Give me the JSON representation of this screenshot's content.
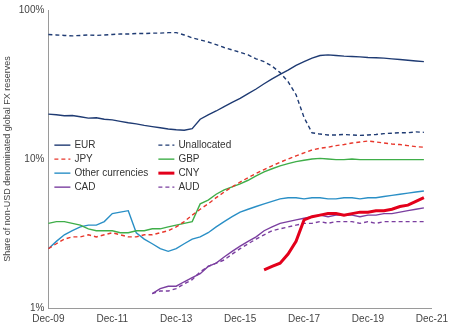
{
  "chart_data": {
    "type": "line",
    "ylabel": "Share of non-USD denominated global FX reserves",
    "categories": [
      "Dec-09",
      null,
      null,
      null,
      null,
      null,
      null,
      null,
      "Dec-11",
      null,
      null,
      null,
      null,
      null,
      null,
      null,
      "Dec-13",
      null,
      null,
      null,
      null,
      null,
      null,
      null,
      "Dec-15",
      null,
      null,
      null,
      null,
      null,
      null,
      null,
      "Dec-17",
      null,
      null,
      null,
      null,
      null,
      null,
      null,
      "Dec-19",
      null,
      null,
      null,
      null,
      null,
      null,
      null,
      "Dec-21"
    ],
    "series": [
      {
        "name": "EUR",
        "color": "#1f3b73",
        "line_style": "solid",
        "values": [
          20,
          19.8,
          19.5,
          19.6,
          19.2,
          18.8,
          18.9,
          18.5,
          18.3,
          17.9,
          17.5,
          17.2,
          16.8,
          16.5,
          16.2,
          15.9,
          15.7,
          15.6,
          16.0,
          18.5,
          19.8,
          21.0,
          22.5,
          24.0,
          25.5,
          27.5,
          29.5,
          32.0,
          34.5,
          37.0,
          39.5,
          42.5,
          45.0,
          47.5,
          49.5,
          50.0,
          49.5,
          49.0,
          48.8,
          48.5,
          48.0,
          47.8,
          47.5,
          47.0,
          46.5,
          46.0,
          45.5,
          45.0,
          null
        ]
      },
      {
        "name": "Unallocated",
        "color": "#1f3b73",
        "line_style": "dashed",
        "values": [
          68.5,
          68,
          67.5,
          67,
          67.5,
          68,
          67.5,
          68,
          68.5,
          69,
          69,
          69.5,
          69.5,
          70,
          70,
          70.5,
          70.5,
          68,
          65,
          63,
          61,
          58.5,
          56,
          54,
          52,
          50,
          47,
          45,
          42,
          38,
          33,
          27,
          19,
          15,
          14.7,
          14.5,
          14.5,
          14.6,
          14.5,
          14.4,
          14.5,
          14.6,
          14.8,
          14.9,
          15.0,
          15.0,
          15.2,
          15.1,
          null
        ]
      },
      {
        "name": "JPY",
        "color": "#e8372c",
        "line_style": "dashed",
        "values": [
          2.5,
          2.7,
          2.9,
          3.0,
          3.0,
          3.1,
          3.0,
          3.1,
          3.2,
          3.1,
          3.0,
          3.0,
          3.1,
          3.1,
          3.2,
          3.3,
          3.5,
          3.8,
          4.2,
          4.6,
          5.0,
          5.5,
          6.0,
          6.5,
          7.0,
          7.5,
          8.0,
          8.5,
          9.0,
          9.5,
          10.0,
          10.5,
          11.0,
          11.5,
          11.8,
          12.0,
          12.3,
          12.5,
          12.8,
          13.0,
          13.2,
          13.0,
          12.8,
          12.6,
          12.5,
          12.3,
          12.1,
          12.0,
          null
        ]
      },
      {
        "name": "GBP",
        "color": "#3fae49",
        "line_style": "solid",
        "values": [
          3.7,
          3.8,
          3.8,
          3.7,
          3.6,
          3.4,
          3.3,
          3.3,
          3.3,
          3.2,
          3.2,
          3.3,
          3.3,
          3.4,
          3.4,
          3.5,
          3.6,
          3.7,
          3.8,
          5.0,
          5.3,
          5.8,
          6.2,
          6.5,
          6.8,
          7.2,
          7.7,
          8.2,
          8.6,
          9.0,
          9.3,
          9.6,
          9.8,
          10.0,
          10.1,
          10.0,
          9.9,
          9.9,
          10.0,
          9.9,
          9.9,
          9.9,
          9.9,
          9.9,
          9.9,
          9.9,
          9.9,
          9.9,
          null
        ]
      },
      {
        "name": "Other currencies",
        "color": "#2a8fc6",
        "line_style": "solid",
        "values": [
          2.5,
          2.8,
          3.1,
          3.3,
          3.5,
          3.6,
          3.6,
          3.8,
          4.3,
          4.4,
          4.5,
          3.2,
          2.9,
          2.7,
          2.5,
          2.4,
          2.5,
          2.7,
          2.9,
          3.0,
          3.2,
          3.5,
          3.8,
          4.1,
          4.4,
          4.6,
          4.8,
          5.0,
          5.2,
          5.4,
          5.5,
          5.5,
          5.4,
          5.5,
          5.5,
          5.4,
          5.4,
          5.5,
          5.5,
          5.4,
          5.5,
          5.5,
          5.6,
          5.7,
          5.8,
          5.9,
          6.0,
          6.1,
          null
        ]
      },
      {
        "name": "CNY",
        "color": "#e3001b",
        "line_style": "solid",
        "values": [
          null,
          null,
          null,
          null,
          null,
          null,
          null,
          null,
          null,
          null,
          null,
          null,
          null,
          null,
          null,
          null,
          null,
          null,
          null,
          null,
          null,
          null,
          null,
          null,
          null,
          null,
          null,
          1.8,
          1.9,
          2.0,
          2.3,
          2.8,
          3.9,
          4.1,
          4.2,
          4.3,
          4.3,
          4.2,
          4.3,
          4.4,
          4.4,
          4.5,
          4.5,
          4.6,
          4.8,
          4.9,
          5.2,
          5.5,
          null
        ]
      },
      {
        "name": "CAD",
        "color": "#7b3fa0",
        "line_style": "solid",
        "values": [
          null,
          null,
          null,
          null,
          null,
          null,
          null,
          null,
          null,
          null,
          null,
          null,
          null,
          1.25,
          1.35,
          1.4,
          1.4,
          1.5,
          1.6,
          1.7,
          1.9,
          2.0,
          2.2,
          2.4,
          2.6,
          2.8,
          3.0,
          3.3,
          3.5,
          3.7,
          3.8,
          3.9,
          4.0,
          4.1,
          4.2,
          4.1,
          4.2,
          4.2,
          4.2,
          4.1,
          4.2,
          4.2,
          4.3,
          4.3,
          4.4,
          4.5,
          4.6,
          4.7,
          null
        ]
      },
      {
        "name": "AUD",
        "color": "#7b3fa0",
        "line_style": "dashed",
        "values": [
          null,
          null,
          null,
          null,
          null,
          null,
          null,
          null,
          null,
          null,
          null,
          null,
          null,
          1.25,
          1.3,
          1.3,
          1.35,
          1.45,
          1.55,
          1.75,
          1.9,
          2.0,
          2.1,
          2.3,
          2.5,
          2.7,
          2.9,
          3.1,
          3.3,
          3.4,
          3.5,
          3.6,
          3.7,
          3.7,
          3.8,
          3.7,
          3.8,
          3.8,
          3.8,
          3.7,
          3.8,
          3.7,
          3.8,
          3.8,
          3.8,
          3.8,
          3.8,
          3.8,
          null
        ]
      }
    ],
    "ylim": [
      1,
      100
    ],
    "yticks": [
      {
        "value": 1,
        "label": "1%"
      },
      {
        "value": 10,
        "label": "10%"
      },
      {
        "value": 100,
        "label": "100%"
      }
    ],
    "log": "y",
    "grid": false,
    "legend": "left"
  }
}
